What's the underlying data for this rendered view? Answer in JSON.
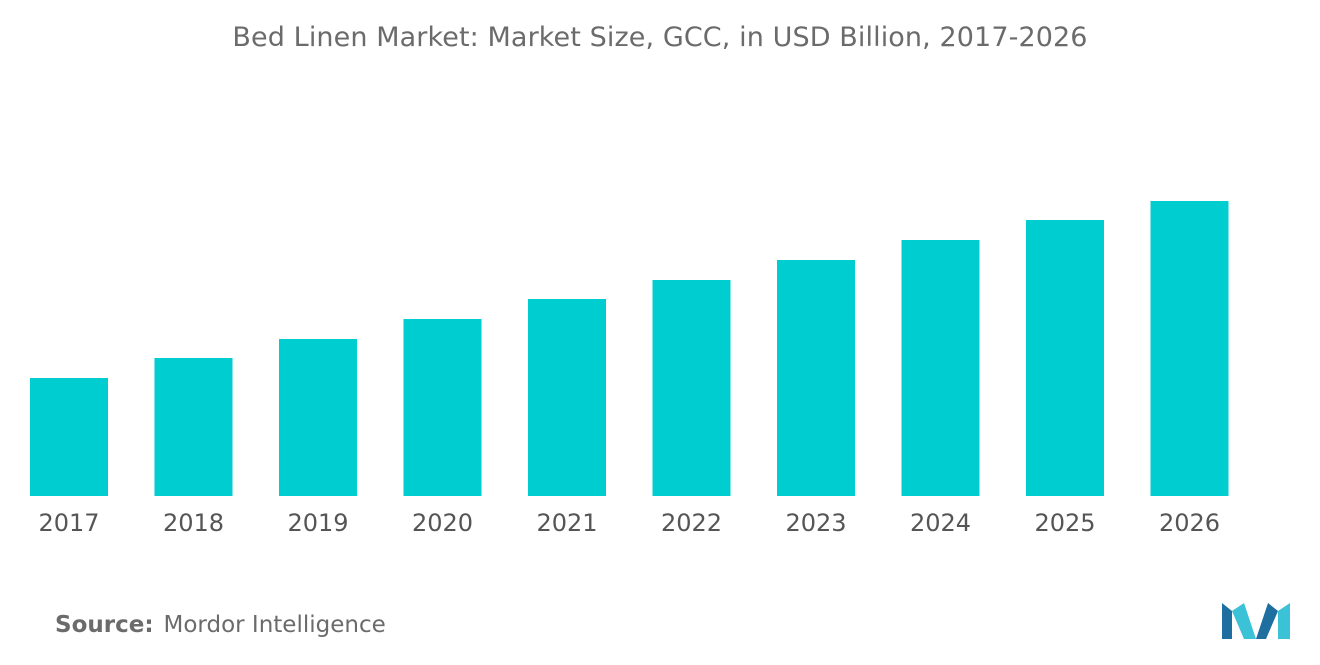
{
  "title": "Bed Linen Market: Market Size, GCC, in USD Billion, 2017-2026",
  "source": {
    "label": "Source:",
    "text": "Mordor Intelligence"
  },
  "colors": {
    "bar": "#00cdd0",
    "logo_dark": "#1e6f9f",
    "logo_light": "#3cc2d6"
  },
  "logo": {
    "icon": "mordor-intelligence-logo-icon"
  },
  "chart_data": {
    "type": "bar",
    "categories": [
      "2017",
      "2018",
      "2019",
      "2020",
      "2021",
      "2022",
      "2023",
      "2024",
      "2025",
      "2026"
    ],
    "values": [
      1.18,
      1.38,
      1.57,
      1.77,
      1.97,
      2.16,
      2.36,
      2.56,
      2.76,
      2.95
    ],
    "title": "Bed Linen Market: Market Size, GCC, in USD Billion, 2017-2026",
    "xlabel": "",
    "ylabel": "",
    "ylim": [
      0,
      3.0
    ],
    "grid": false,
    "legend": "none"
  }
}
